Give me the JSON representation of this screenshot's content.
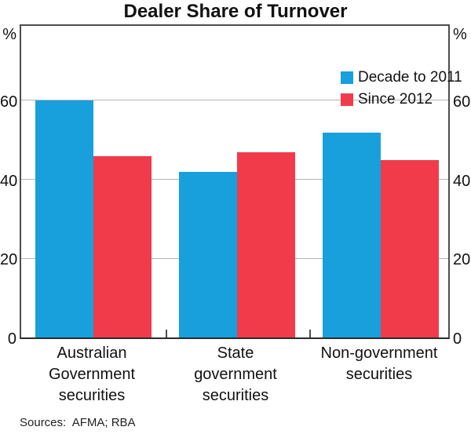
{
  "title": "Dealer Share of Turnover",
  "axis": {
    "unit_left": "%",
    "unit_right": "%"
  },
  "footer": {
    "sources": "Sources:  AFMA; RBA"
  },
  "chart_data": {
    "type": "bar",
    "title": "Dealer Share of Turnover",
    "categories": [
      "Australian Government securities",
      "State government securities",
      "Non-government securities"
    ],
    "series": [
      {
        "name": "Decade to 2011",
        "color": "#18A0DC",
        "values": [
          60,
          42,
          52
        ]
      },
      {
        "name": "Since 2012",
        "color": "#F13B4A",
        "values": [
          46,
          47,
          45
        ]
      }
    ],
    "ylabel": "%",
    "ylim": [
      0,
      79
    ],
    "yticks": [
      0,
      20,
      40,
      60
    ],
    "grid": true,
    "gridline_color": "#b5b5b5",
    "legend_position": "top-right"
  }
}
